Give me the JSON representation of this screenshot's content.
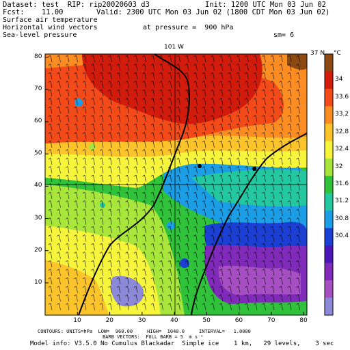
{
  "header": {
    "dataset": "Dataset: test  RIP: rip20020603 d3",
    "init": "Init: 1200 UTC Mon 03 Jun 02",
    "fcst": "Fcst:    11.00",
    "valid": "Valid: 2300 UTC Mon 03 Jun 02 (1800 CDT Mon 03 Jun 02)",
    "line3": "Surface air temperature",
    "line4": "Horizontal wind vectors",
    "pressure": "at pressure =  900 hPa",
    "line5": "Sea-level pressure",
    "sm": "sm= 6"
  },
  "map": {
    "top_label": "101 W",
    "right_label": "37 N",
    "x_ticks": [
      "10",
      "20",
      "30",
      "40",
      "50",
      "60",
      "70",
      "80"
    ],
    "y_ticks": [
      "10",
      "20",
      "30",
      "40",
      "50",
      "60",
      "70",
      "80"
    ]
  },
  "colorbar": {
    "unit": "°C",
    "labels": [
      "34",
      "33.6",
      "33.2",
      "32.8",
      "32.4",
      "32",
      "31.6",
      "31.2",
      "30.8",
      "30.4"
    ],
    "colors": [
      "#8c4a12",
      "#d11b0d",
      "#f24a18",
      "#fb8d22",
      "#fbc42a",
      "#f7f53b",
      "#a8e63c",
      "#2fc23a",
      "#24c8a0",
      "#1b9ee6",
      "#1b3fd3",
      "#4a16b7",
      "#7f2ab8",
      "#a64fc3",
      "#8c8ad8"
    ]
  },
  "footer": {
    "line1": "CONTOURS: UNITS=hPa  LOW=  960.00     HIGH=  1040.0     INTERVAL=   1.0000",
    "line2": "BARB VECTORS:  FULL BARB = 5  m s⁻¹",
    "line3": "Model info: V3.5.0 No Cumulus Blackadar  Simple ice    1 km,   29 levels,    3 sec"
  }
}
